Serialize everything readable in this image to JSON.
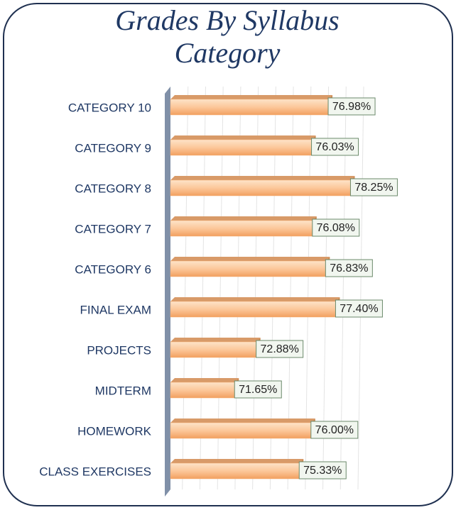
{
  "chart_data": {
    "type": "barh",
    "title": "Grades By Syllabus Category",
    "categories": [
      "CATEGORY 10",
      "CATEGORY 9",
      "CATEGORY 8",
      "CATEGORY 7",
      "CATEGORY 6",
      "FINAL EXAM",
      "PROJECTS",
      "MIDTERM",
      "HOMEWORK",
      "CLASS EXERCISES"
    ],
    "values": [
      76.98,
      76.03,
      78.25,
      76.08,
      76.83,
      77.4,
      72.88,
      71.65,
      76.0,
      75.33
    ],
    "value_labels": [
      "76.98%",
      "76.03%",
      "78.25%",
      "76.08%",
      "76.83%",
      "77.40%",
      "72.88%",
      "71.65%",
      "76.00%",
      "75.33%"
    ],
    "color": "#f7b27a",
    "xlim": [
      68,
      79
    ]
  }
}
